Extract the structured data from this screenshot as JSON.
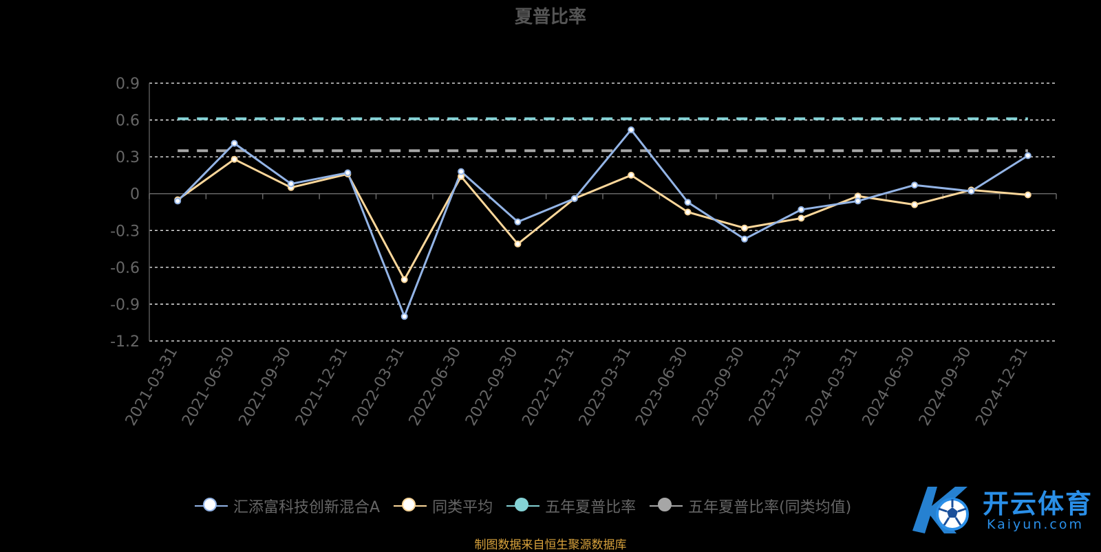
{
  "title": "夏普比率",
  "source_note": "制图数据来自恒生聚源数据库",
  "watermark": {
    "cn": "开云体育",
    "en": "Kaiyun.com",
    "color": "#2a8fe8"
  },
  "chart_data": {
    "type": "line",
    "title": "夏普比率",
    "categories": [
      "2021-03-31",
      "2021-06-30",
      "2021-09-30",
      "2021-12-31",
      "2022-03-31",
      "2022-06-30",
      "2022-09-30",
      "2022-12-31",
      "2023-03-31",
      "2023-06-30",
      "2023-09-30",
      "2023-12-31",
      "2024-03-31",
      "2024-06-30",
      "2024-09-30",
      "2024-12-31"
    ],
    "yticks": [
      "0.9",
      "0.6",
      "0.3",
      "0",
      "-0.3",
      "-0.6",
      "-0.9",
      "-1.2"
    ],
    "ylim": [
      -1.2,
      0.9
    ],
    "grid": true,
    "legend": "bottom",
    "series": [
      {
        "name": "汇添富科技创新混合A",
        "color": "#93b4e6",
        "style": "line",
        "values": [
          -0.06,
          0.41,
          0.08,
          0.17,
          -1.0,
          0.18,
          -0.23,
          -0.04,
          0.52,
          -0.07,
          -0.37,
          -0.13,
          -0.06,
          0.07,
          0.02,
          0.31
        ]
      },
      {
        "name": "同类平均",
        "color": "#fcd79a",
        "style": "line",
        "values": [
          -0.05,
          0.28,
          0.05,
          0.16,
          -0.7,
          0.14,
          -0.41,
          -0.04,
          0.15,
          -0.15,
          -0.28,
          -0.2,
          -0.02,
          -0.09,
          0.03,
          -0.01
        ]
      },
      {
        "name": "五年夏普比率",
        "color": "#84d2d5",
        "style": "dashed",
        "values": [
          0.61,
          0.61,
          0.61,
          0.61,
          0.61,
          0.61,
          0.61,
          0.61,
          0.61,
          0.61,
          0.61,
          0.61,
          0.61,
          0.61,
          0.61,
          0.61
        ]
      },
      {
        "name": "五年夏普比率(同类均值)",
        "color": "#a6a6a6",
        "style": "dashed",
        "values": [
          0.35,
          0.35,
          0.35,
          0.35,
          0.35,
          0.35,
          0.35,
          0.35,
          0.35,
          0.35,
          0.35,
          0.35,
          0.35,
          0.35,
          0.35,
          0.35
        ]
      }
    ]
  }
}
